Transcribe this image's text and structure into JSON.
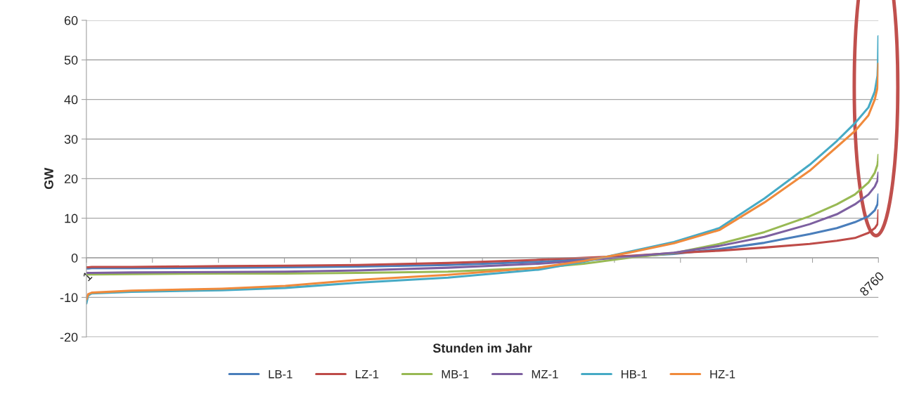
{
  "chart_data": {
    "type": "line",
    "xlabel": "Stunden im Jahr",
    "ylabel": "GW",
    "xlim": [
      1,
      8760
    ],
    "ylim": [
      -20,
      60
    ],
    "xticks": [
      1,
      {
        "value": 731,
        "label": null
      },
      {
        "value": 1461,
        "label": null
      },
      {
        "value": 2191,
        "label": null
      },
      {
        "value": 2921,
        "label": null
      },
      {
        "value": 3651,
        "label": null
      },
      {
        "value": 4381,
        "label": null
      },
      {
        "value": 5111,
        "label": null
      },
      {
        "value": 5841,
        "label": null
      },
      {
        "value": 6571,
        "label": null
      },
      {
        "value": 7301,
        "label": null
      },
      {
        "value": 8031,
        "label": null
      },
      8760
    ],
    "yticks": [
      -20,
      -10,
      0,
      10,
      20,
      30,
      40,
      50,
      60
    ],
    "grid": "y",
    "legend": "bottom",
    "marker": "none",
    "line_style": "solid",
    "x": [
      1,
      20,
      60,
      500,
      1500,
      2200,
      3000,
      4000,
      5000,
      5500,
      6000,
      6500,
      7000,
      7500,
      8000,
      8300,
      8500,
      8650,
      8720,
      8750,
      8755,
      8760
    ],
    "series": [
      {
        "name": "LB-1",
        "color": "#4a7ebb",
        "values": [
          -2.7,
          -2.7,
          -2.6,
          -2.6,
          -2.5,
          -2.4,
          -2.2,
          -1.8,
          -1.0,
          -0.4,
          0.3,
          1.0,
          2.2,
          3.8,
          6.0,
          7.5,
          9.0,
          10.5,
          12.0,
          13.5,
          14.5,
          16.0
        ]
      },
      {
        "name": "LZ-1",
        "color": "#be4b48",
        "values": [
          -2.4,
          -2.4,
          -2.3,
          -2.3,
          -2.1,
          -2.0,
          -1.8,
          -1.3,
          -0.5,
          0.0,
          0.5,
          1.2,
          1.8,
          2.6,
          3.5,
          4.3,
          5.0,
          6.3,
          7.5,
          8.5,
          9.5,
          12.0
        ]
      },
      {
        "name": "MB-1",
        "color": "#98b954",
        "values": [
          -4.2,
          -4.2,
          -4.2,
          -4.1,
          -4.0,
          -4.0,
          -3.8,
          -3.5,
          -2.5,
          -1.5,
          0.0,
          1.2,
          3.5,
          6.5,
          10.5,
          13.5,
          16.0,
          19.0,
          21.5,
          23.5,
          24.5,
          26.0
        ]
      },
      {
        "name": "MZ-1",
        "color": "#7d60a0",
        "values": [
          -3.8,
          -3.8,
          -3.8,
          -3.7,
          -3.6,
          -3.5,
          -3.2,
          -2.5,
          -1.5,
          -0.7,
          0.3,
          1.3,
          3.0,
          5.3,
          8.5,
          11.0,
          13.5,
          16.0,
          18.0,
          19.5,
          20.5,
          21.5
        ]
      },
      {
        "name": "HB-1",
        "color": "#46aac5",
        "values": [
          -11.5,
          -9.5,
          -9.0,
          -8.6,
          -8.2,
          -7.6,
          -6.3,
          -5.0,
          -3.0,
          -1.0,
          1.5,
          4.0,
          7.5,
          15.0,
          23.5,
          29.5,
          34.0,
          38.0,
          42.0,
          46.0,
          49.0,
          56.0
        ]
      },
      {
        "name": "HZ-1",
        "color": "#f08a3c",
        "values": [
          -10.5,
          -9.2,
          -8.8,
          -8.3,
          -7.8,
          -7.1,
          -5.6,
          -4.3,
          -2.5,
          -0.8,
          1.3,
          3.7,
          7.0,
          14.0,
          22.0,
          28.0,
          32.0,
          36.0,
          40.0,
          43.0,
          45.0,
          49.0
        ]
      }
    ]
  }
}
